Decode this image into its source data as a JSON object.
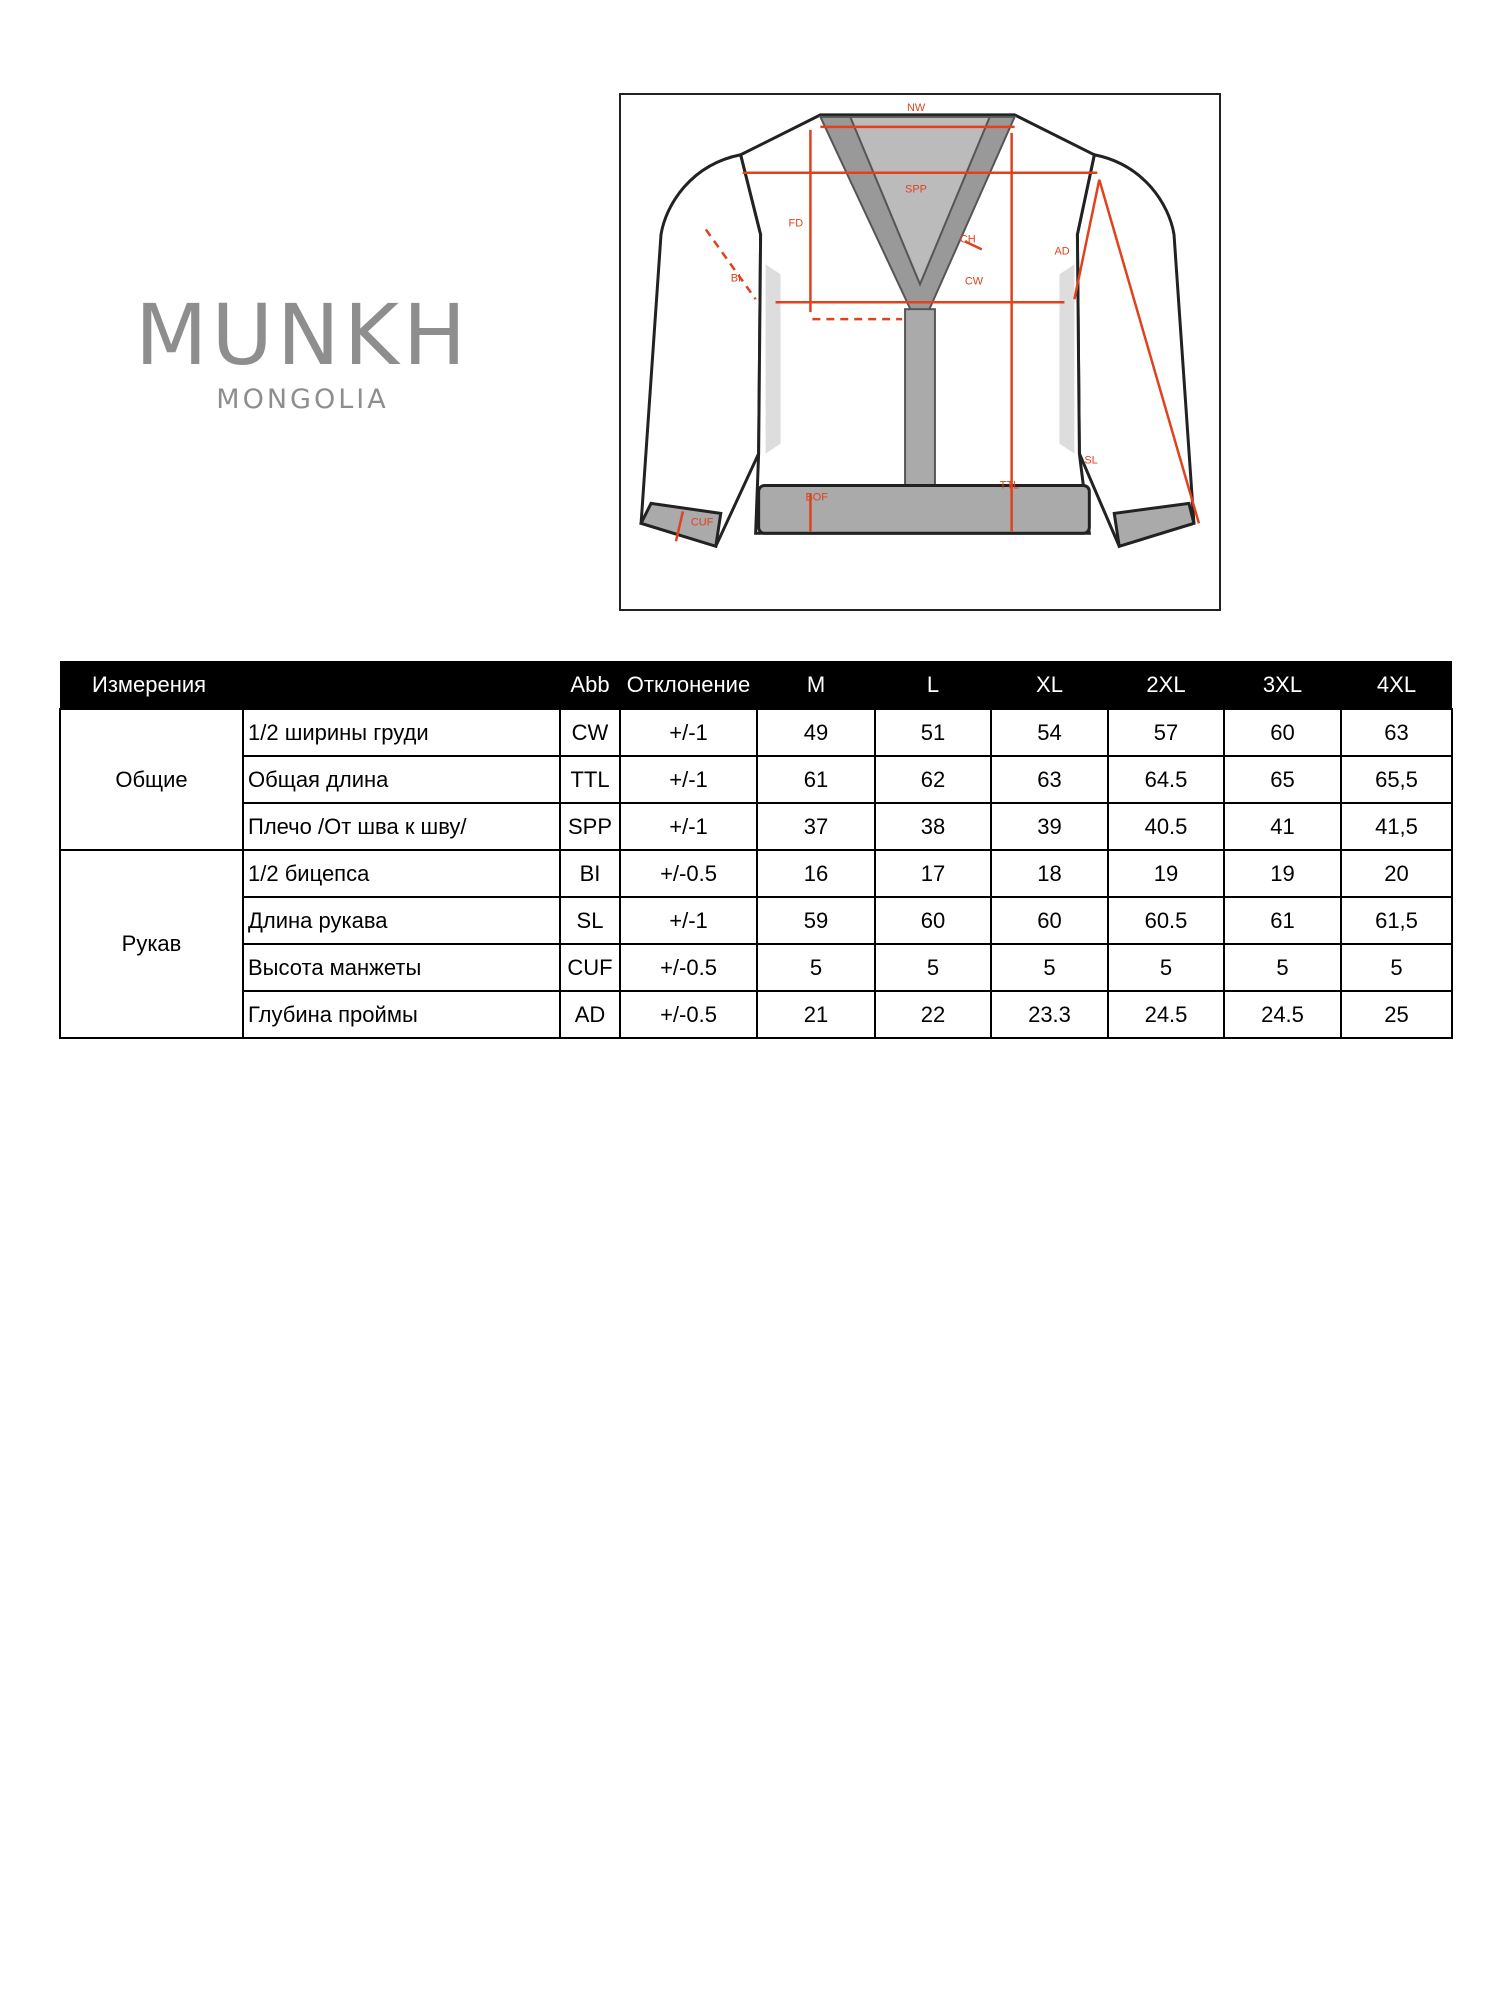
{
  "logo": {
    "brand": "MUNKH",
    "subtitle": "MONGOLIA"
  },
  "diagram": {
    "labels": [
      "NW",
      "SPP",
      "FD",
      "CH",
      "AD",
      "BI",
      "CW",
      "BOF",
      "TTL",
      "SL",
      "CUF"
    ],
    "accent": "#e0421b"
  },
  "table": {
    "headers": [
      "Измерения",
      "Abb",
      "Отклонение",
      "M",
      "L",
      "XL",
      "2XL",
      "3XL",
      "4XL"
    ],
    "groups": [
      {
        "name": "Общие",
        "rows": [
          {
            "label": "1/2 ширины груди",
            "abb": "CW",
            "tol": "+/-1",
            "values": [
              "49",
              "51",
              "54",
              "57",
              "60",
              "63"
            ]
          },
          {
            "label": "Общая длина",
            "abb": "TTL",
            "tol": "+/-1",
            "values": [
              "61",
              "62",
              "63",
              "64.5",
              "65",
              "65,5"
            ]
          },
          {
            "label": "Плечо /От шва к шву/",
            "abb": "SPP",
            "tol": "+/-1",
            "values": [
              "37",
              "38",
              "39",
              "40.5",
              "41",
              "41,5"
            ]
          }
        ]
      },
      {
        "name": "Рукав",
        "rows": [
          {
            "label": "1/2 бицепса",
            "abb": "BI",
            "tol": "+/-0.5",
            "values": [
              "16",
              "17",
              "18",
              "19",
              "19",
              "20"
            ]
          },
          {
            "label": "Длина рукава",
            "abb": "SL",
            "tol": "+/-1",
            "values": [
              "59",
              "60",
              "60",
              "60.5",
              "61",
              "61,5"
            ]
          },
          {
            "label": "Высота манжеты",
            "abb": "CUF",
            "tol": "+/-0.5",
            "values": [
              "5",
              "5",
              "5",
              "5",
              "5",
              "5"
            ]
          },
          {
            "label": "Глубина проймы",
            "abb": "AD",
            "tol": "+/-0.5",
            "values": [
              "21",
              "22",
              "23.3",
              "24.5",
              "24.5",
              "25"
            ]
          }
        ]
      }
    ]
  }
}
